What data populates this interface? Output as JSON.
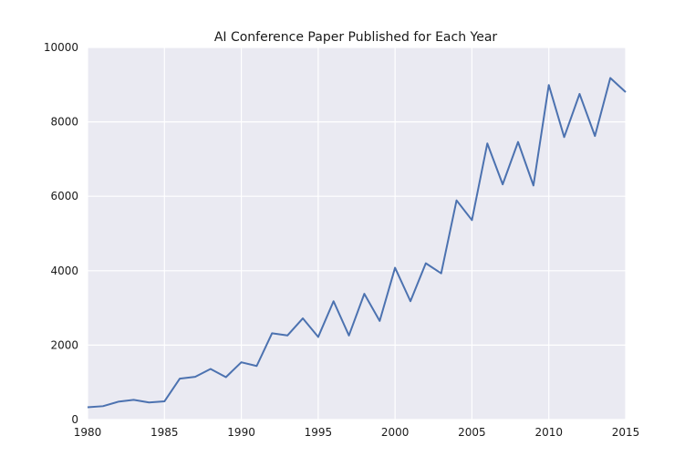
{
  "chart_data": {
    "type": "line",
    "title": "AI Conference Paper Published for Each Year",
    "xlabel": "",
    "ylabel": "",
    "xlim": [
      1980,
      2015
    ],
    "ylim": [
      0,
      10000
    ],
    "xticks": [
      "1980",
      "1985",
      "1990",
      "1995",
      "2000",
      "2005",
      "2010",
      "2015"
    ],
    "yticks": [
      "0",
      "2000",
      "4000",
      "6000",
      "8000",
      "10000"
    ],
    "grid": true,
    "legend": "none",
    "colors": {
      "background": "#EAEAF2",
      "grid": "#FFFFFF",
      "line": "#4C72B0"
    },
    "x": [
      1980,
      1981,
      1982,
      1983,
      1984,
      1985,
      1986,
      1987,
      1988,
      1989,
      1990,
      1991,
      1992,
      1993,
      1994,
      1995,
      1996,
      1997,
      1998,
      1999,
      2000,
      2001,
      2002,
      2003,
      2004,
      2005,
      2006,
      2007,
      2008,
      2009,
      2010,
      2011,
      2012,
      2013,
      2014,
      2015
    ],
    "series": [
      {
        "values": [
          330,
          360,
          480,
          530,
          460,
          490,
          1100,
          1150,
          1360,
          1140,
          1540,
          1440,
          2320,
          2260,
          2720,
          2220,
          3180,
          2260,
          3380,
          2650,
          4080,
          3180,
          4200,
          3930,
          5890,
          5360,
          7420,
          6320,
          7460,
          6290,
          8990,
          7590,
          8750,
          7620,
          9180,
          8800
        ]
      }
    ]
  }
}
